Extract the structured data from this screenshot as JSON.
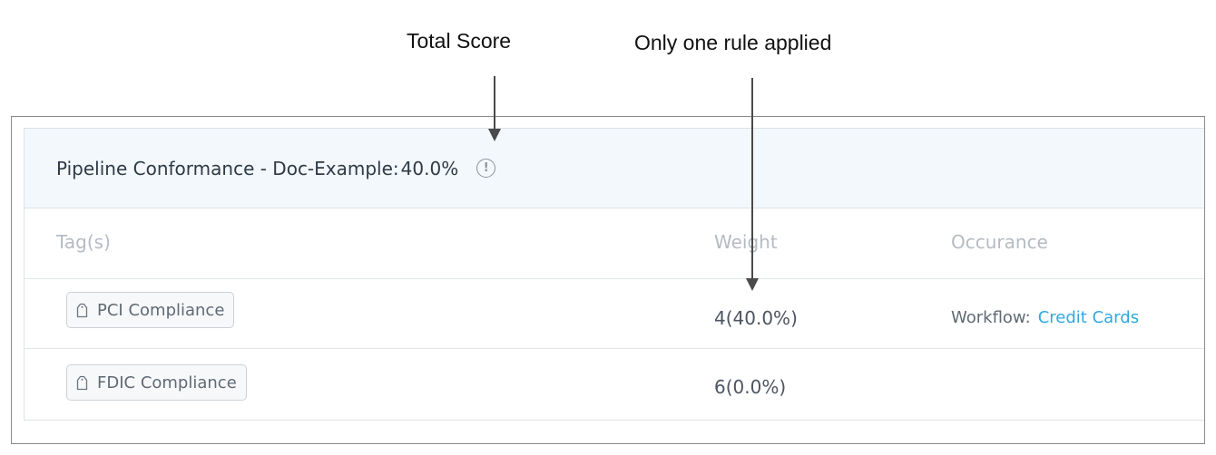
{
  "annotations": {
    "total_score": "Total Score",
    "one_rule": "Only one rule applied"
  },
  "card": {
    "title": "Pipeline Conformance - Doc-Example:",
    "score": "40.0%",
    "info_icon": "info-circle-icon"
  },
  "table": {
    "columns": [
      "Tag(s)",
      "Weight",
      "Occurance"
    ],
    "rows": [
      {
        "tag": "PCI Compliance",
        "weight": "4(40.0%)",
        "occurrence_label": "Workflow:",
        "occurrence_link": "Credit Cards"
      },
      {
        "tag": "FDIC Compliance",
        "weight": "6(0.0%)"
      }
    ]
  },
  "colors": {
    "header_bg": "#f2f8fc",
    "link": "#2fa8e0",
    "muted_header": "#b4bbc2"
  }
}
